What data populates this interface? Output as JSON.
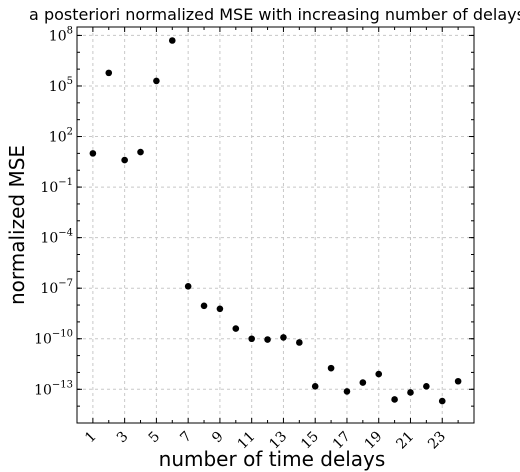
{
  "chart_data": {
    "type": "scatter",
    "title": "a posteriori normalized MSE with increasing number of delays",
    "xlabel": "number of time delays",
    "ylabel": "normalized MSE",
    "xlim": [
      0,
      25
    ],
    "ylim_log10": [
      -15,
      8.5
    ],
    "y_scale": "log",
    "grid": true,
    "x_ticks": [
      1,
      3,
      5,
      7,
      9,
      11,
      13,
      15,
      17,
      19,
      21,
      23
    ],
    "y_ticks": [
      {
        "base": "10",
        "exp": "8",
        "value": 8
      },
      {
        "base": "10",
        "exp": "5",
        "value": 5
      },
      {
        "base": "10",
        "exp": "2",
        "value": 2
      },
      {
        "base": "10",
        "exp": "−1",
        "value": -1
      },
      {
        "base": "10",
        "exp": "−4",
        "value": -4
      },
      {
        "base": "10",
        "exp": "−7",
        "value": -7
      },
      {
        "base": "10",
        "exp": "−10",
        "value": -10
      },
      {
        "base": "10",
        "exp": "−13",
        "value": -13
      }
    ],
    "series": [
      {
        "x": [
          1,
          2,
          3,
          4,
          5,
          6,
          7,
          8,
          9,
          10,
          11,
          12,
          13,
          14,
          15,
          16,
          17,
          18,
          19,
          20,
          21,
          22,
          23,
          24
        ],
        "y": [
          10,
          600000.0,
          4,
          12,
          200000.0,
          50000000.0,
          1.3e-07,
          9e-09,
          6e-09,
          4e-10,
          1e-10,
          9e-11,
          1.2e-10,
          6e-11,
          1.5e-13,
          1.8e-12,
          7.5e-14,
          2.5e-13,
          8e-13,
          2.5e-14,
          6.5e-14,
          1.5e-13,
          2e-14,
          3e-13
        ]
      }
    ]
  }
}
